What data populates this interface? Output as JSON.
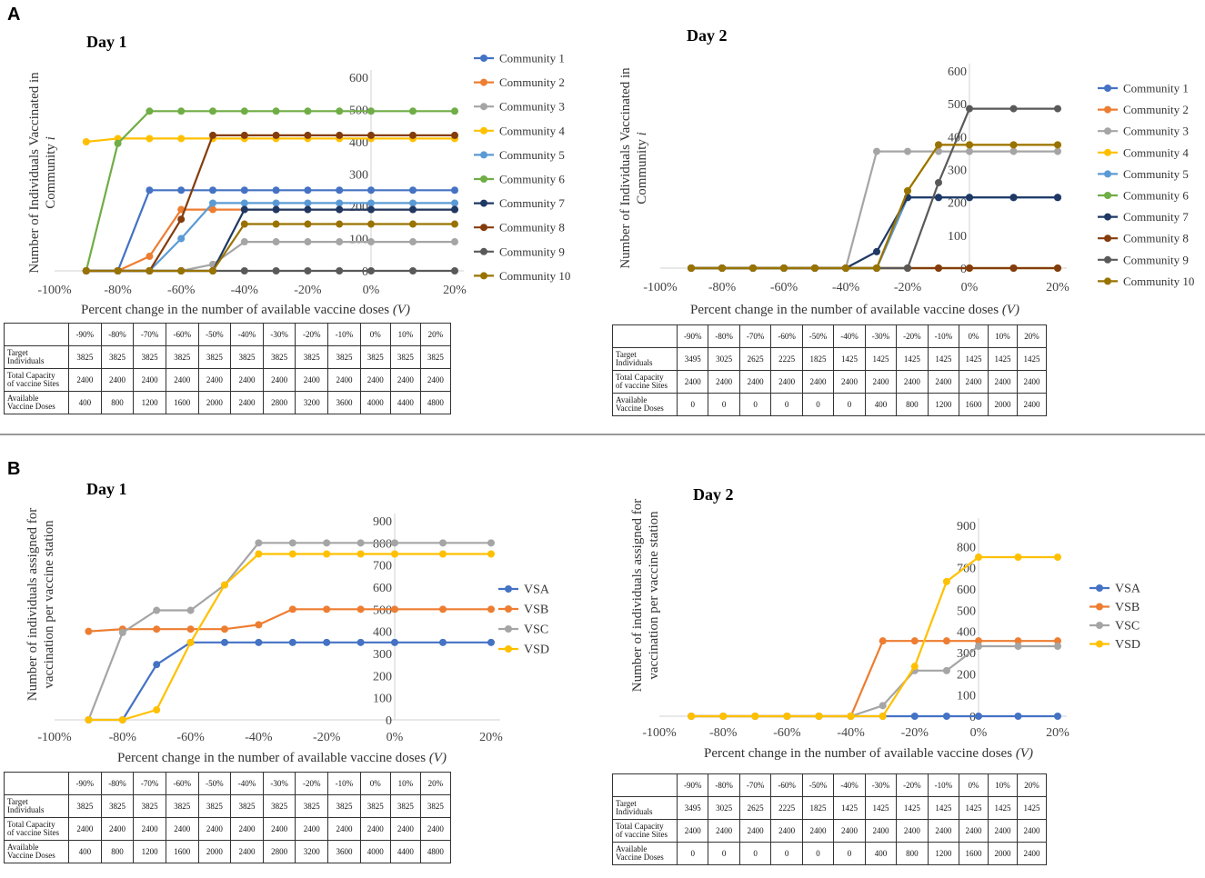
{
  "panels": {
    "a": "A",
    "b": "B"
  },
  "chart_data": [
    {
      "type": "line",
      "panel": "A",
      "title": "Day 1",
      "xlabel": "Percent change in the number of available vaccine doses",
      "xlabel_var": "(V)",
      "ylabel_line1": "Number of Individuals Vaccinated in",
      "ylabel_line2": "Community",
      "ylabel_var": "i",
      "x": [
        -90,
        -80,
        -70,
        -60,
        -50,
        -40,
        -30,
        -20,
        -10,
        0,
        10,
        20
      ],
      "xticks": [
        "-100%",
        "-80%",
        "-60%",
        "-40%",
        "-20%",
        "0%",
        "20%"
      ],
      "ylim": [
        0,
        600
      ],
      "yticks": [
        "0",
        "100",
        "200",
        "300",
        "400",
        "500",
        "600"
      ],
      "legend": "right",
      "series": [
        {
          "name": "Community 1",
          "color": "#4472c4",
          "values": [
            0,
            0,
            250,
            250,
            250,
            250,
            250,
            250,
            250,
            250,
            250,
            250
          ]
        },
        {
          "name": "Community 2",
          "color": "#ed7d31",
          "values": [
            0,
            0,
            45,
            190,
            190,
            190,
            190,
            190,
            190,
            190,
            190,
            190
          ]
        },
        {
          "name": "Community 3",
          "color": "#a5a5a5",
          "values": [
            0,
            0,
            0,
            0,
            20,
            90,
            90,
            90,
            90,
            90,
            90,
            90
          ]
        },
        {
          "name": "Community 4",
          "color": "#ffc000",
          "values": [
            400,
            410,
            410,
            410,
            410,
            410,
            410,
            410,
            410,
            410,
            410,
            410
          ]
        },
        {
          "name": "Community 5",
          "color": "#5b9bd5",
          "values": [
            0,
            0,
            0,
            100,
            210,
            210,
            210,
            210,
            210,
            210,
            210,
            210
          ]
        },
        {
          "name": "Community 6",
          "color": "#70ad47",
          "values": [
            0,
            395,
            495,
            495,
            495,
            495,
            495,
            495,
            495,
            495,
            495,
            495
          ]
        },
        {
          "name": "Community 7",
          "color": "#1f3864",
          "values": [
            0,
            0,
            0,
            0,
            0,
            190,
            190,
            190,
            190,
            190,
            190,
            190
          ]
        },
        {
          "name": "Community 8",
          "color": "#843c0c",
          "values": [
            0,
            0,
            0,
            160,
            420,
            420,
            420,
            420,
            420,
            420,
            420,
            420
          ]
        },
        {
          "name": "Community 9",
          "color": "#595959",
          "values": [
            0,
            0,
            0,
            0,
            0,
            0,
            0,
            0,
            0,
            0,
            0,
            0
          ]
        },
        {
          "name": "Community 10",
          "color": "#997300",
          "values": [
            0,
            0,
            0,
            0,
            0,
            145,
            145,
            145,
            145,
            145,
            145,
            145
          ]
        }
      ]
    },
    {
      "type": "line",
      "panel": "A",
      "title": "Day 2",
      "xlabel": "Percent change in the number of available vaccine doses",
      "xlabel_var": "(V)",
      "ylabel_line1": "Number of Individuals Vaccinated in",
      "ylabel_line2": "Community",
      "ylabel_var": "i",
      "x": [
        -90,
        -80,
        -70,
        -60,
        -50,
        -40,
        -30,
        -20,
        -10,
        0,
        10,
        20
      ],
      "xticks": [
        "-100%",
        "-80%",
        "-60%",
        "-40%",
        "-20%",
        "0%",
        "20%"
      ],
      "ylim": [
        0,
        600
      ],
      "yticks": [
        "0",
        "100",
        "200",
        "300",
        "400",
        "500",
        "600"
      ],
      "legend": "right",
      "series": [
        {
          "name": "Community 1",
          "color": "#4472c4",
          "values": [
            0,
            0,
            0,
            0,
            0,
            0,
            0,
            215,
            215,
            215,
            215,
            215
          ]
        },
        {
          "name": "Community 2",
          "color": "#ed7d31",
          "values": [
            0,
            0,
            0,
            0,
            0,
            0,
            0,
            0,
            0,
            0,
            0,
            0
          ]
        },
        {
          "name": "Community 3",
          "color": "#a5a5a5",
          "values": [
            0,
            0,
            0,
            0,
            0,
            0,
            355,
            355,
            355,
            355,
            355,
            355
          ]
        },
        {
          "name": "Community 4",
          "color": "#ffc000",
          "values": [
            0,
            0,
            0,
            0,
            0,
            0,
            0,
            235,
            375,
            375,
            375,
            375
          ]
        },
        {
          "name": "Community 5",
          "color": "#5b9bd5",
          "values": [
            0,
            0,
            0,
            0,
            0,
            0,
            0,
            215,
            215,
            215,
            215,
            215
          ]
        },
        {
          "name": "Community 6",
          "color": "#70ad47",
          "values": [
            0,
            0,
            0,
            0,
            0,
            0,
            0,
            0,
            0,
            0,
            0,
            0
          ]
        },
        {
          "name": "Community 7",
          "color": "#1f3864",
          "values": [
            0,
            0,
            0,
            0,
            0,
            0,
            50,
            215,
            215,
            215,
            215,
            215
          ]
        },
        {
          "name": "Community 8",
          "color": "#843c0c",
          "values": [
            0,
            0,
            0,
            0,
            0,
            0,
            0,
            0,
            0,
            0,
            0,
            0
          ]
        },
        {
          "name": "Community 9",
          "color": "#595959",
          "values": [
            0,
            0,
            0,
            0,
            0,
            0,
            0,
            0,
            260,
            485,
            485,
            485
          ]
        },
        {
          "name": "Community 10",
          "color": "#997300",
          "values": [
            0,
            0,
            0,
            0,
            0,
            0,
            0,
            235,
            375,
            375,
            375,
            375
          ]
        }
      ]
    },
    {
      "type": "line",
      "panel": "B",
      "title": "Day 1",
      "xlabel": "Percent change in the number of available vaccine doses",
      "xlabel_var": "(V)",
      "ylabel_line1": "Number of individuals assigned for",
      "ylabel_line2": "vaccination per vaccine station",
      "x": [
        -90,
        -80,
        -70,
        -60,
        -50,
        -40,
        -30,
        -20,
        -10,
        0,
        10,
        20
      ],
      "xticks": [
        "-100%",
        "-80%",
        "-60%",
        "-40%",
        "-20%",
        "0%",
        "20%"
      ],
      "ylim": [
        0,
        900
      ],
      "yticks": [
        "0",
        "100",
        "200",
        "300",
        "400",
        "500",
        "600",
        "700",
        "800",
        "900"
      ],
      "legend": "right",
      "series": [
        {
          "name": "VSA",
          "color": "#4472c4",
          "values": [
            0,
            0,
            250,
            350,
            350,
            350,
            350,
            350,
            350,
            350,
            350,
            350
          ]
        },
        {
          "name": "VSB",
          "color": "#ed7d31",
          "values": [
            400,
            410,
            410,
            410,
            410,
            430,
            500,
            500,
            500,
            500,
            500,
            500
          ]
        },
        {
          "name": "VSC",
          "color": "#a5a5a5",
          "values": [
            0,
            395,
            495,
            495,
            610,
            800,
            800,
            800,
            800,
            800,
            800,
            800
          ]
        },
        {
          "name": "VSD",
          "color": "#ffc000",
          "values": [
            0,
            0,
            45,
            350,
            610,
            750,
            750,
            750,
            750,
            750,
            750,
            750
          ]
        }
      ]
    },
    {
      "type": "line",
      "panel": "B",
      "title": "Day 2",
      "xlabel": "Percent change in the number of available vaccine doses",
      "xlabel_var": "(V)",
      "ylabel_line1": "Number of individuals assigned for",
      "ylabel_line2": "vaccination per vaccine station",
      "x": [
        -90,
        -80,
        -70,
        -60,
        -50,
        -40,
        -30,
        -20,
        -10,
        0,
        10,
        20
      ],
      "xticks": [
        "-100%",
        "-80%",
        "-60%",
        "-40%",
        "-20%",
        "0%",
        "20%"
      ],
      "ylim": [
        0,
        900
      ],
      "yticks": [
        "0",
        "100",
        "200",
        "300",
        "400",
        "500",
        "600",
        "700",
        "800",
        "900"
      ],
      "legend": "right",
      "series": [
        {
          "name": "VSA",
          "color": "#4472c4",
          "values": [
            0,
            0,
            0,
            0,
            0,
            0,
            0,
            0,
            0,
            0,
            0,
            0
          ]
        },
        {
          "name": "VSB",
          "color": "#ed7d31",
          "values": [
            0,
            0,
            0,
            0,
            0,
            0,
            355,
            355,
            355,
            355,
            355,
            355
          ]
        },
        {
          "name": "VSC",
          "color": "#a5a5a5",
          "values": [
            0,
            0,
            0,
            0,
            0,
            0,
            50,
            215,
            215,
            330,
            330,
            330
          ]
        },
        {
          "name": "VSD",
          "color": "#ffc000",
          "values": [
            0,
            0,
            0,
            0,
            0,
            0,
            0,
            235,
            635,
            750,
            750,
            750
          ]
        }
      ]
    }
  ],
  "tables": {
    "day1": {
      "headers": [
        "",
        "-90%",
        "-80%",
        "-70%",
        "-60%",
        "-50%",
        "-40%",
        "-30%",
        "-20%",
        "-10%",
        "0%",
        "10%",
        "20%"
      ],
      "rows": [
        {
          "label1": "Target",
          "label2": "Individuals",
          "values": [
            "3825",
            "3825",
            "3825",
            "3825",
            "3825",
            "3825",
            "3825",
            "3825",
            "3825",
            "3825",
            "3825",
            "3825"
          ]
        },
        {
          "label1": "Total Capacity",
          "label2": "of vaccine Sites",
          "values": [
            "2400",
            "2400",
            "2400",
            "2400",
            "2400",
            "2400",
            "2400",
            "2400",
            "2400",
            "2400",
            "2400",
            "2400"
          ]
        },
        {
          "label1": "Available",
          "label2": "Vaccine Doses",
          "values": [
            "400",
            "800",
            "1200",
            "1600",
            "2000",
            "2400",
            "2800",
            "3200",
            "3600",
            "4000",
            "4400",
            "4800"
          ]
        }
      ]
    },
    "day2": {
      "headers": [
        "",
        "-90%",
        "-80%",
        "-70%",
        "-60%",
        "-50%",
        "-40%",
        "-30%",
        "-20%",
        "-10%",
        "0%",
        "10%",
        "20%"
      ],
      "rows": [
        {
          "label1": "Target",
          "label2": "Individuals",
          "values": [
            "3495",
            "3025",
            "2625",
            "2225",
            "1825",
            "1425",
            "1425",
            "1425",
            "1425",
            "1425",
            "1425",
            "1425"
          ]
        },
        {
          "label1": "Total Capacity",
          "label2": "of vaccine Sites",
          "values": [
            "2400",
            "2400",
            "2400",
            "2400",
            "2400",
            "2400",
            "2400",
            "2400",
            "2400",
            "2400",
            "2400",
            "2400"
          ]
        },
        {
          "label1": "Available",
          "label2": "Vaccine Doses",
          "values": [
            "0",
            "0",
            "0",
            "0",
            "0",
            "0",
            "400",
            "800",
            "1200",
            "1600",
            "2000",
            "2400"
          ]
        }
      ]
    }
  }
}
